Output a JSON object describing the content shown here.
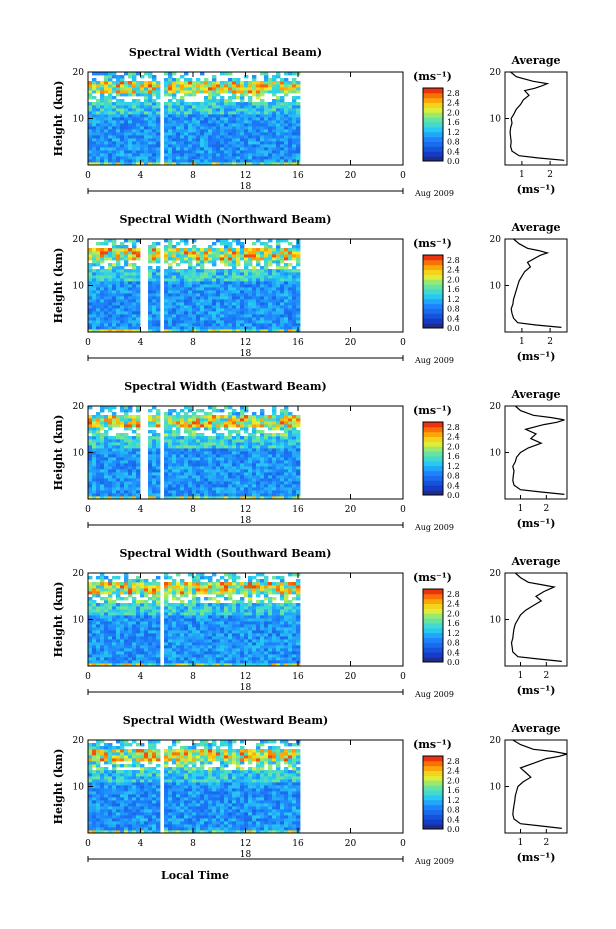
{
  "chart_data": [
    {
      "type": "heatmap",
      "title": "Spectral Width (Vertical Beam)",
      "ylabel": "Height (km)",
      "xlim": [
        0,
        24
      ],
      "ylim": [
        0,
        20
      ],
      "xticks": [
        "0",
        "4",
        "8",
        "12",
        "16",
        "20",
        "0"
      ],
      "yticks": [
        "10",
        "20"
      ],
      "date_top": "18",
      "date_label": "Aug 2009",
      "colorbar": {
        "unit": "(ms⁻¹)",
        "ticks": [
          "2.8",
          "2.4",
          "2.0",
          "1.6",
          "1.2",
          "0.8",
          "0.4",
          "0.0"
        ],
        "range": [
          0,
          3.0
        ]
      },
      "data_extent_hours": [
        0,
        16
      ],
      "gaps_hours": [
        5.5
      ],
      "average_profile": {
        "title": "Average",
        "xlabel": "(ms⁻¹)",
        "xticks": [
          "1",
          "2"
        ],
        "xlim": [
          0.4,
          2.6
        ],
        "yticks": [
          "10",
          "20"
        ],
        "height_km": [
          1,
          1.5,
          2,
          3,
          4,
          5,
          6,
          7,
          8,
          9,
          10,
          11,
          12,
          13,
          14,
          15,
          16,
          16.5,
          17,
          17.5,
          18,
          19,
          20
        ],
        "width_ms": [
          2.5,
          1.6,
          0.9,
          0.65,
          0.6,
          0.62,
          0.6,
          0.58,
          0.6,
          0.65,
          0.62,
          0.72,
          0.8,
          0.95,
          1.05,
          1.25,
          1.1,
          1.45,
          1.7,
          1.9,
          1.4,
          0.8,
          0.6
        ]
      }
    },
    {
      "type": "heatmap",
      "title": "Spectral Width (Northward Beam)",
      "ylabel": "Height (km)",
      "xlim": [
        0,
        24
      ],
      "ylim": [
        0,
        20
      ],
      "xticks": [
        "0",
        "4",
        "8",
        "12",
        "16",
        "20",
        "0"
      ],
      "yticks": [
        "10",
        "20"
      ],
      "date_top": "18",
      "date_label": "Aug 2009",
      "colorbar": {
        "unit": "(ms⁻¹)",
        "ticks": [
          "2.8",
          "2.4",
          "2.0",
          "1.6",
          "1.2",
          "0.8",
          "0.4",
          "0.0"
        ],
        "range": [
          0,
          3.0
        ]
      },
      "data_extent_hours": [
        0,
        16
      ],
      "gaps_hours": [
        4.2,
        5.5
      ],
      "average_profile": {
        "title": "Average",
        "xlabel": "(ms⁻¹)",
        "xticks": [
          "1",
          "2"
        ],
        "xlim": [
          0.4,
          2.6
        ],
        "yticks": [
          "10",
          "20"
        ],
        "height_km": [
          1,
          1.5,
          2,
          3,
          4,
          5,
          6,
          7,
          8,
          9,
          10,
          11,
          12,
          13,
          14,
          15,
          16,
          16.5,
          17,
          17.5,
          18,
          19,
          20
        ],
        "width_ms": [
          2.4,
          1.5,
          0.85,
          0.7,
          0.65,
          0.62,
          0.68,
          0.7,
          0.75,
          0.8,
          0.85,
          0.9,
          1.0,
          1.1,
          1.3,
          1.2,
          1.5,
          1.65,
          1.9,
          1.6,
          1.2,
          0.9,
          0.7
        ]
      }
    },
    {
      "type": "heatmap",
      "title": "Spectral Width (Eastward Beam)",
      "ylabel": "Height (km)",
      "xlim": [
        0,
        24
      ],
      "ylim": [
        0,
        20
      ],
      "xticks": [
        "0",
        "4",
        "8",
        "12",
        "16",
        "20",
        "0"
      ],
      "yticks": [
        "10",
        "20"
      ],
      "date_top": "18",
      "date_label": "Aug 2009",
      "colorbar": {
        "unit": "(ms⁻¹)",
        "ticks": [
          "2.8",
          "2.4",
          "2.0",
          "1.6",
          "1.2",
          "0.8",
          "0.4",
          "0.0"
        ],
        "range": [
          0,
          3.0
        ]
      },
      "data_extent_hours": [
        0,
        16
      ],
      "gaps_hours": [
        4.2,
        5.5
      ],
      "average_profile": {
        "title": "Average",
        "xlabel": "(ms⁻¹)",
        "xticks": [
          "1",
          "2"
        ],
        "xlim": [
          0.4,
          2.8
        ],
        "yticks": [
          "10",
          "20"
        ],
        "height_km": [
          1,
          1.5,
          2,
          3,
          4,
          5,
          6,
          7,
          8,
          9,
          10,
          11,
          12,
          13,
          14,
          15,
          16,
          16.5,
          17,
          17.5,
          18,
          19,
          20
        ],
        "width_ms": [
          2.7,
          1.8,
          1.0,
          0.75,
          0.7,
          0.72,
          0.75,
          0.7,
          0.8,
          0.85,
          1.0,
          1.3,
          1.8,
          1.4,
          1.6,
          1.2,
          1.9,
          2.4,
          2.7,
          2.2,
          1.5,
          1.0,
          0.8
        ]
      }
    },
    {
      "type": "heatmap",
      "title": "Spectral Width (Southward Beam)",
      "ylabel": "Height (km)",
      "xlim": [
        0,
        24
      ],
      "ylim": [
        0,
        20
      ],
      "xticks": [
        "0",
        "4",
        "8",
        "12",
        "16",
        "20",
        "0"
      ],
      "yticks": [
        "10",
        "20"
      ],
      "date_top": "18",
      "date_label": "Aug 2009",
      "colorbar": {
        "unit": "(ms⁻¹)",
        "ticks": [
          "2.8",
          "2.4",
          "2.0",
          "1.6",
          "1.2",
          "0.8",
          "0.4",
          "0.0"
        ],
        "range": [
          0,
          3.0
        ]
      },
      "data_extent_hours": [
        0,
        16
      ],
      "gaps_hours": [
        5.5
      ],
      "average_profile": {
        "title": "Average",
        "xlabel": "(ms⁻¹)",
        "xticks": [
          "1",
          "2"
        ],
        "xlim": [
          0.4,
          2.8
        ],
        "yticks": [
          "10",
          "20"
        ],
        "height_km": [
          1,
          1.5,
          2,
          3,
          4,
          5,
          6,
          7,
          8,
          9,
          10,
          11,
          12,
          13,
          14,
          15,
          16,
          16.5,
          17,
          17.5,
          18,
          19,
          20
        ],
        "width_ms": [
          2.6,
          1.7,
          0.9,
          0.7,
          0.68,
          0.65,
          0.7,
          0.72,
          0.75,
          0.8,
          0.9,
          1.0,
          1.2,
          1.5,
          1.8,
          1.6,
          1.9,
          2.1,
          2.3,
          1.8,
          1.3,
          1.0,
          0.8
        ]
      }
    },
    {
      "type": "heatmap",
      "title": "Spectral Width (Westward Beam)",
      "ylabel": "Height (km)",
      "xlabel": "Local Time",
      "xlim": [
        0,
        24
      ],
      "ylim": [
        0,
        20
      ],
      "xticks": [
        "0",
        "4",
        "8",
        "12",
        "16",
        "20",
        "0"
      ],
      "yticks": [
        "10",
        "20"
      ],
      "date_top": "18",
      "date_label": "Aug 2009",
      "colorbar": {
        "unit": "(ms⁻¹)",
        "ticks": [
          "2.8",
          "2.4",
          "2.0",
          "1.6",
          "1.2",
          "0.8",
          "0.4",
          "0.0"
        ],
        "range": [
          0,
          3.0
        ]
      },
      "data_extent_hours": [
        0,
        16
      ],
      "gaps_hours": [
        5.5
      ],
      "average_profile": {
        "title": "Average",
        "xlabel": "(ms⁻¹)",
        "xticks": [
          "1",
          "2"
        ],
        "xlim": [
          0.4,
          2.8
        ],
        "yticks": [
          "10",
          "20"
        ],
        "height_km": [
          1,
          1.5,
          2,
          3,
          4,
          5,
          6,
          7,
          8,
          9,
          10,
          11,
          12,
          13,
          14,
          15,
          16,
          16.5,
          17,
          17.5,
          18,
          19,
          20
        ],
        "width_ms": [
          2.6,
          1.8,
          1.0,
          0.75,
          0.7,
          0.72,
          0.75,
          0.78,
          0.8,
          0.85,
          0.9,
          1.1,
          1.4,
          1.2,
          1.0,
          1.5,
          2.0,
          2.5,
          2.8,
          2.3,
          1.5,
          1.0,
          0.7
        ]
      }
    }
  ]
}
